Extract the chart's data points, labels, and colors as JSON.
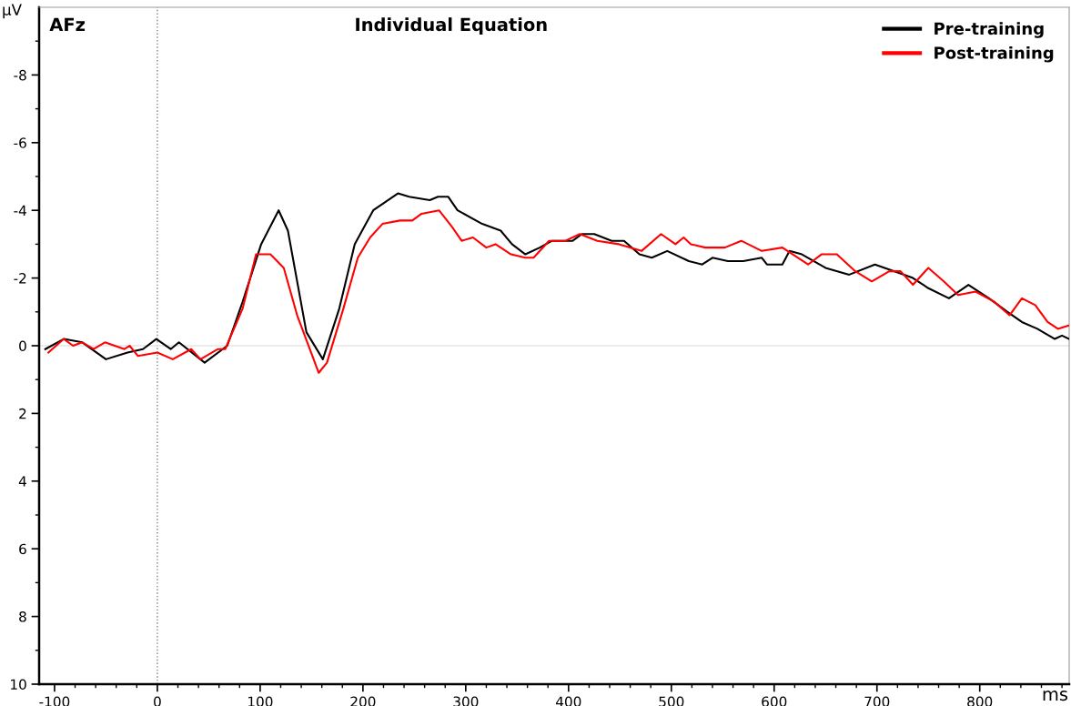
{
  "chart_data": {
    "type": "line",
    "title": "Individual Equation",
    "xlabel": "ms",
    "ylabel": "μV",
    "annotations": [
      "AFz"
    ],
    "xlim": [
      -115,
      887
    ],
    "ylim": [
      10,
      -10
    ],
    "xticks": [
      -100,
      {
        "value": -80,
        "label": null
      },
      {
        "value": -60,
        "label": null
      },
      {
        "value": -40,
        "label": null
      },
      {
        "value": -20,
        "label": null
      },
      0,
      {
        "value": 20,
        "label": null
      },
      {
        "value": 40,
        "label": null
      },
      {
        "value": 60,
        "label": null
      },
      {
        "value": 80,
        "label": null
      },
      100,
      {
        "value": 120,
        "label": null
      },
      {
        "value": 140,
        "label": null
      },
      {
        "value": 160,
        "label": null
      },
      {
        "value": 180,
        "label": null
      },
      200,
      {
        "value": 220,
        "label": null
      },
      {
        "value": 240,
        "label": null
      },
      {
        "value": 260,
        "label": null
      },
      {
        "value": 280,
        "label": null
      },
      300,
      {
        "value": 320,
        "label": null
      },
      {
        "value": 340,
        "label": null
      },
      {
        "value": 360,
        "label": null
      },
      {
        "value": 380,
        "label": null
      },
      400,
      {
        "value": 420,
        "label": null
      },
      {
        "value": 440,
        "label": null
      },
      {
        "value": 460,
        "label": null
      },
      {
        "value": 480,
        "label": null
      },
      500,
      {
        "value": 520,
        "label": null
      },
      {
        "value": 540,
        "label": null
      },
      {
        "value": 560,
        "label": null
      },
      {
        "value": 580,
        "label": null
      },
      600,
      {
        "value": 620,
        "label": null
      },
      {
        "value": 640,
        "label": null
      },
      {
        "value": 660,
        "label": null
      },
      {
        "value": 680,
        "label": null
      },
      700,
      {
        "value": 720,
        "label": null
      },
      {
        "value": 740,
        "label": null
      },
      {
        "value": 760,
        "label": null
      },
      {
        "value": 780,
        "label": null
      },
      800,
      {
        "value": 820,
        "label": null
      },
      {
        "value": 840,
        "label": null
      },
      {
        "value": 860,
        "label": null
      },
      {
        "value": 880,
        "label": null
      }
    ],
    "yticks": [
      {
        "value": -9,
        "label": null
      },
      -8,
      {
        "value": -7,
        "label": null
      },
      -6,
      {
        "value": -5,
        "label": null
      },
      -4,
      {
        "value": -3,
        "label": null
      },
      -2,
      {
        "value": -1,
        "label": null
      },
      0,
      {
        "value": 1,
        "label": null
      },
      2,
      {
        "value": 3,
        "label": null
      },
      4,
      {
        "value": 5,
        "label": null
      },
      6,
      {
        "value": 7,
        "label": null
      },
      8,
      {
        "value": 9,
        "label": null
      },
      10
    ],
    "grid": false,
    "legend": "top right",
    "marker": "none",
    "line_style": "solid",
    "ref_lines": [
      {
        "axis": "x",
        "value": 0,
        "label": null,
        "color": "#808080",
        "line_style": "dotted"
      },
      {
        "axis": "y",
        "value": 0,
        "label": null,
        "color": "#e6e6e6",
        "line_style": "solid"
      }
    ],
    "series": [
      {
        "name": "Pre-training",
        "color": "#000000",
        "x": [
          -109,
          -91,
          -73,
          -50,
          -29,
          -14,
          -1,
          13,
          21,
          46,
          68,
          83,
          101,
          118,
          127,
          145,
          161,
          177,
          192,
          210,
          234,
          245,
          265,
          273,
          283,
          292,
          316,
          334,
          345,
          358,
          372,
          384,
          404,
          413,
          425,
          442,
          454,
          469,
          481,
          496,
          517,
          530,
          540,
          555,
          570,
          588,
          593,
          608,
          615,
          627,
          650,
          673,
          698,
          717,
          735,
          750,
          770,
          789,
          809,
          827,
          841,
          856,
          873,
          880,
          887
        ],
        "values": [
          0.1,
          -0.2,
          -0.1,
          0.4,
          0.2,
          0.1,
          -0.2,
          0.1,
          -0.1,
          0.5,
          0.0,
          -1.3,
          -3.0,
          -4.0,
          -3.4,
          -0.4,
          0.4,
          -1.1,
          -3.0,
          -4.0,
          -4.5,
          -4.4,
          -4.3,
          -4.4,
          -4.4,
          -4.0,
          -3.6,
          -3.4,
          -3.0,
          -2.7,
          -2.9,
          -3.1,
          -3.1,
          -3.3,
          -3.3,
          -3.1,
          -3.1,
          -2.7,
          -2.6,
          -2.8,
          -2.5,
          -2.4,
          -2.6,
          -2.5,
          -2.5,
          -2.6,
          -2.4,
          -2.4,
          -2.8,
          -2.7,
          -2.3,
          -2.1,
          -2.4,
          -2.2,
          -2.0,
          -1.7,
          -1.4,
          -1.8,
          -1.4,
          -1.0,
          -0.7,
          -0.5,
          -0.2,
          -0.3,
          -0.2
        ]
      },
      {
        "name": "Post-training",
        "color": "#ff0000",
        "x": [
          -106,
          -91,
          -82,
          -73,
          -62,
          -51,
          -32,
          -27,
          -19,
          0,
          15,
          33,
          42,
          59,
          66,
          83,
          96,
          110,
          123,
          136,
          157,
          165,
          181,
          195,
          207,
          219,
          236,
          248,
          257,
          274,
          287,
          296,
          307,
          320,
          329,
          344,
          358,
          366,
          381,
          397,
          411,
          428,
          449,
          471,
          490,
          504,
          512,
          519,
          533,
          552,
          568,
          588,
          608,
          633,
          646,
          661,
          679,
          695,
          712,
          723,
          735,
          750,
          765,
          779,
          796,
          814,
          829,
          841,
          854,
          866,
          876,
          887
        ],
        "values": [
          0.2,
          -0.2,
          0.0,
          -0.1,
          0.1,
          -0.1,
          0.1,
          0.0,
          0.3,
          0.2,
          0.4,
          0.1,
          0.4,
          0.1,
          0.1,
          -1.1,
          -2.7,
          -2.7,
          -2.3,
          -0.9,
          0.8,
          0.5,
          -1.1,
          -2.6,
          -3.2,
          -3.6,
          -3.7,
          -3.7,
          -3.9,
          -4.0,
          -3.5,
          -3.1,
          -3.2,
          -2.9,
          -3.0,
          -2.7,
          -2.6,
          -2.6,
          -3.1,
          -3.1,
          -3.3,
          -3.1,
          -3.0,
          -2.8,
          -3.3,
          -3.0,
          -3.2,
          -3.0,
          -2.9,
          -2.9,
          -3.1,
          -2.8,
          -2.9,
          -2.4,
          -2.7,
          -2.7,
          -2.2,
          -1.9,
          -2.2,
          -2.2,
          -1.8,
          -2.3,
          -1.9,
          -1.5,
          -1.6,
          -1.3,
          -0.9,
          -1.4,
          -1.2,
          -0.7,
          -0.5,
          -0.6
        ]
      }
    ]
  }
}
